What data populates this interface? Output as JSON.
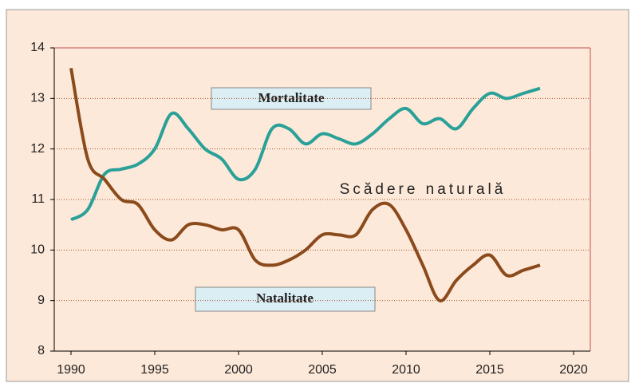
{
  "chart_data": {
    "type": "line",
    "annotations": [
      "Scădere naturală"
    ],
    "x": [
      1990,
      1991,
      1992,
      1993,
      1994,
      1995,
      1996,
      1997,
      1998,
      1999,
      2000,
      2001,
      2002,
      2003,
      2004,
      2005,
      2006,
      2007,
      2008,
      2009,
      2010,
      2011,
      2012,
      2013,
      2014,
      2015,
      2016,
      2017,
      2018
    ],
    "series": [
      {
        "name": "Mortalitate",
        "color": "#2aa198",
        "values": [
          10.6,
          10.8,
          11.5,
          11.6,
          11.7,
          12.0,
          12.7,
          12.4,
          12.0,
          11.8,
          11.4,
          11.6,
          12.4,
          12.4,
          12.1,
          12.3,
          12.2,
          12.1,
          12.3,
          12.6,
          12.8,
          12.5,
          12.6,
          12.4,
          12.8,
          13.1,
          13.0,
          13.1,
          13.2
        ]
      },
      {
        "name": "Natalitate",
        "color": "#8b4a1c",
        "values": [
          13.6,
          11.8,
          11.4,
          11.0,
          10.9,
          10.4,
          10.2,
          10.5,
          10.5,
          10.4,
          10.4,
          9.8,
          9.7,
          9.8,
          10.0,
          10.3,
          10.3,
          10.3,
          10.8,
          10.9,
          10.4,
          9.7,
          9.0,
          9.4,
          9.7,
          9.9,
          9.5,
          9.6,
          9.7
        ]
      }
    ],
    "xlim": [
      1989,
      2021
    ],
    "xticks": [
      1990,
      1995,
      2000,
      2005,
      2010,
      2015,
      2020
    ],
    "ylim": [
      8,
      14
    ],
    "yticks": [
      8,
      9,
      10,
      11,
      12,
      13,
      14
    ],
    "grid": true
  }
}
